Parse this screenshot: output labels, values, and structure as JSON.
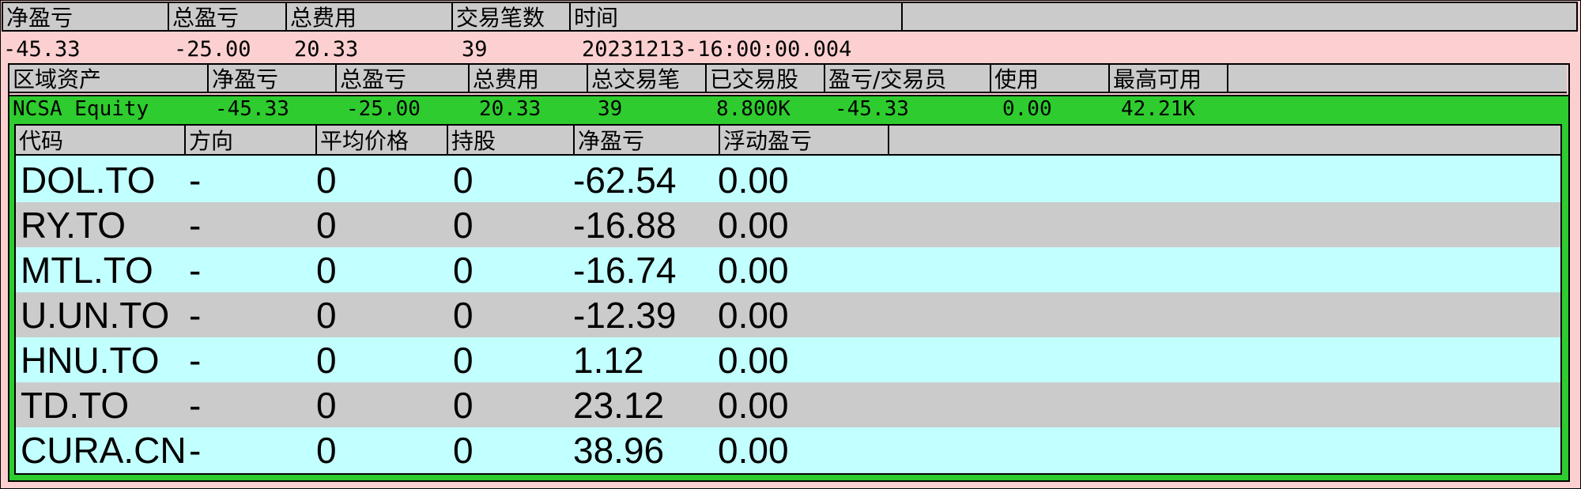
{
  "summary": {
    "headers": [
      "净盈亏",
      "总盈亏",
      "总费用",
      "交易笔数",
      "时间"
    ],
    "values": {
      "net_pnl": "-45.33",
      "total_pnl": "-25.00",
      "total_fees": "20.33",
      "trade_count": "39",
      "time": "20231213-16:00:00.004"
    }
  },
  "zone": {
    "headers": [
      "区域资产",
      "净盈亏",
      "总盈亏",
      "总费用",
      "总交易笔",
      "已交易股",
      "盈亏/交易员",
      "使用",
      "最高可用"
    ],
    "values": {
      "name": "NCSA Equity",
      "net_pnl": "-45.33",
      "total_pnl": "-25.00",
      "total_fees": "20.33",
      "total_trades": "39",
      "traded_shares": "8.800K",
      "pnl_per_trader": "-45.33",
      "used": "0.00",
      "max_available": "42.21K"
    }
  },
  "holdings": {
    "headers": [
      "代码",
      "方向",
      "平均价格",
      "持股",
      "净盈亏",
      "浮动盈亏"
    ],
    "rows": [
      {
        "code": "DOL.TO",
        "direction": "-",
        "avg_price": "0",
        "position": "0",
        "net_pnl": "-62.54",
        "float_pnl": "0.00"
      },
      {
        "code": "RY.TO",
        "direction": "-",
        "avg_price": "0",
        "position": "0",
        "net_pnl": "-16.88",
        "float_pnl": "0.00"
      },
      {
        "code": "MTL.TO",
        "direction": "-",
        "avg_price": "0",
        "position": "0",
        "net_pnl": "-16.74",
        "float_pnl": "0.00"
      },
      {
        "code": "U.UN.TO",
        "direction": "-",
        "avg_price": "0",
        "position": "0",
        "net_pnl": "-12.39",
        "float_pnl": "0.00"
      },
      {
        "code": "HNU.TO",
        "direction": "-",
        "avg_price": "0",
        "position": "0",
        "net_pnl": "1.12",
        "float_pnl": "0.00"
      },
      {
        "code": "TD.TO",
        "direction": "-",
        "avg_price": "0",
        "position": "0",
        "net_pnl": "23.12",
        "float_pnl": "0.00"
      },
      {
        "code": "CURA.CN",
        "direction": "-",
        "avg_price": "0",
        "position": "0",
        "net_pnl": "38.96",
        "float_pnl": "0.00"
      }
    ]
  },
  "colors": {
    "summary_bg": "#fcd0d0",
    "zone_bg": "#2ecc2e",
    "header_bg": "#cbcbcb",
    "row_alt_a": "#c2ffff",
    "row_alt_b": "#cbcbcb"
  }
}
